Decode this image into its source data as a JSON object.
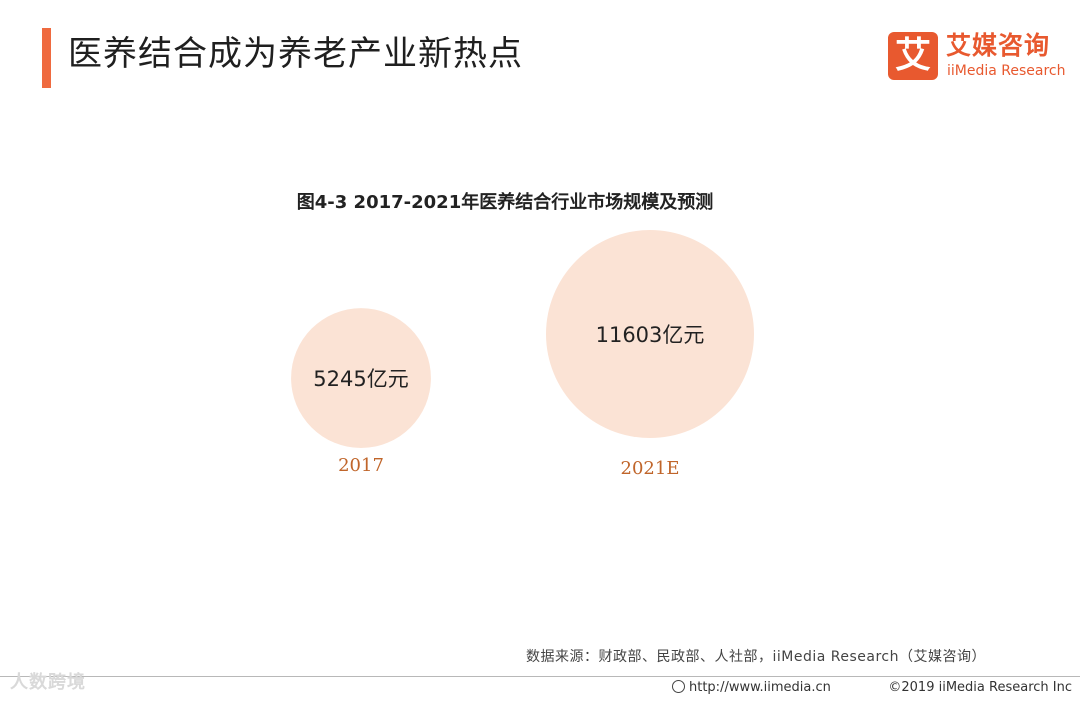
{
  "header": {
    "title": "医养结合成为养老产业新热点",
    "logo_mark": "艾",
    "logo_cn": "艾媒咨询",
    "logo_en": "iiMedia Research"
  },
  "chart_data": {
    "type": "bubble",
    "title": "图4-3 2017-2021年医养结合行业市场规模及预测",
    "unit": "亿元",
    "categories": [
      "2017",
      "2021E"
    ],
    "values": [
      5245,
      11603
    ],
    "labels": [
      "5245亿元",
      "11603亿元"
    ],
    "colors": {
      "bubble": "#fbe3d5",
      "category_text": "#c0652a",
      "value_text": "#222222"
    }
  },
  "footer": {
    "source": "数据来源：财政部、民政部、人社部，iiMedia Research（艾媒咨询）",
    "url": "http://www.iimedia.cn",
    "copyright": "©2019 iiMedia Research Inc",
    "watermark": "人数跨境"
  }
}
